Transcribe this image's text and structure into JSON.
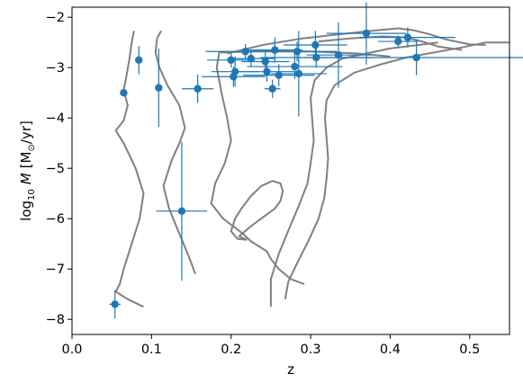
{
  "chart_data": {
    "type": "scatter",
    "xlabel": "z",
    "ylabel_parts": {
      "prefix": "log",
      "sub": "10",
      "mdot": "M",
      "units": "[M",
      "units_sub": "⊙",
      "units_tail": "/yr]"
    },
    "xlim": [
      0.0,
      0.55
    ],
    "ylim": [
      -8.3,
      -1.8
    ],
    "xticks": [
      0.0,
      0.1,
      0.2,
      0.3,
      0.4,
      0.5
    ],
    "xtick_labels": [
      "0.0",
      "0.1",
      "0.2",
      "0.3",
      "0.4",
      "0.5"
    ],
    "yticks": [
      -8,
      -7,
      -6,
      -5,
      -4,
      -3,
      -2
    ],
    "ytick_labels": [
      "−8",
      "−7",
      "−6",
      "−5",
      "−4",
      "−3",
      "−2"
    ],
    "grid": false,
    "colors": {
      "points": "#1f77b4",
      "contours": "#808080"
    },
    "points": [
      {
        "x": 0.054,
        "y": -7.7,
        "xerr": 0.007,
        "yerr": 0.28
      },
      {
        "x": 0.065,
        "y": -3.5,
        "xerr": 0.0,
        "yerr": 0.0
      },
      {
        "x": 0.084,
        "y": -2.85,
        "xerr": 0.0,
        "yerr": 0.28
      },
      {
        "x": 0.109,
        "y": -3.4,
        "xerr": 0.0,
        "yerr": 0.78
      },
      {
        "x": 0.138,
        "y": -5.85,
        "xerr": 0.032,
        "yerr": 1.38
      },
      {
        "x": 0.158,
        "y": -3.42,
        "xerr": 0.02,
        "yerr": 0.28
      },
      {
        "x": 0.2,
        "y": -2.85,
        "xerr": 0.03,
        "yerr": 0.15
      },
      {
        "x": 0.203,
        "y": -3.18,
        "xerr": 0.04,
        "yerr": 0.2
      },
      {
        "x": 0.205,
        "y": -3.08,
        "xerr": 0.03,
        "yerr": 0.3
      },
      {
        "x": 0.218,
        "y": -2.68,
        "xerr": 0.05,
        "yerr": 0.15
      },
      {
        "x": 0.225,
        "y": -2.82,
        "xerr": 0.03,
        "yerr": 0.16
      },
      {
        "x": 0.243,
        "y": -2.88,
        "xerr": 0.03,
        "yerr": 0.18
      },
      {
        "x": 0.245,
        "y": -3.08,
        "xerr": 0.04,
        "yerr": 0.2
      },
      {
        "x": 0.252,
        "y": -3.42,
        "xerr": 0.01,
        "yerr": 0.18
      },
      {
        "x": 0.255,
        "y": -2.65,
        "xerr": 0.035,
        "yerr": 0.25
      },
      {
        "x": 0.26,
        "y": -3.15,
        "xerr": 0.045,
        "yerr": 0.22
      },
      {
        "x": 0.28,
        "y": -2.98,
        "xerr": 0.06,
        "yerr": 0.25
      },
      {
        "x": 0.283,
        "y": -2.68,
        "xerr": 0.05,
        "yerr": 0.2
      },
      {
        "x": 0.285,
        "y": -3.12,
        "xerr": 0.035,
        "yerr": 0.85
      },
      {
        "x": 0.306,
        "y": -2.55,
        "xerr": 0.04,
        "yerr": 0.28
      },
      {
        "x": 0.307,
        "y": -2.8,
        "xerr": 0.07,
        "yerr": 0.2
      },
      {
        "x": 0.335,
        "y": -2.75,
        "xerr": 0.04,
        "yerr": 0.65
      },
      {
        "x": 0.37,
        "y": -2.32,
        "xerr": 0.05,
        "yerr": 0.62
      },
      {
        "x": 0.41,
        "y": -2.48,
        "xerr": 0.025,
        "yerr": 0.12
      },
      {
        "x": 0.422,
        "y": -2.4,
        "xerr": 0.06,
        "yerr": 0.2
      },
      {
        "x": 0.433,
        "y": -2.8,
        "xerr": 0.14,
        "yerr": 0.35
      }
    ],
    "contours": [
      [
        [
          0.09,
          -7.75
        ],
        [
          0.07,
          -7.6
        ],
        [
          0.055,
          -7.45
        ],
        [
          0.06,
          -7.3
        ],
        [
          0.065,
          -7.0
        ],
        [
          0.075,
          -6.5
        ],
        [
          0.085,
          -6.0
        ],
        [
          0.09,
          -5.5
        ],
        [
          0.08,
          -5.0
        ],
        [
          0.065,
          -4.5
        ],
        [
          0.055,
          -4.25
        ],
        [
          0.065,
          -4.05
        ],
        [
          0.07,
          -3.75
        ],
        [
          0.065,
          -3.45
        ],
        [
          0.068,
          -3.2
        ],
        [
          0.072,
          -2.85
        ],
        [
          0.075,
          -2.5
        ],
        [
          0.078,
          -2.27
        ]
      ],
      [
        [
          0.155,
          -7.1
        ],
        [
          0.148,
          -6.8
        ],
        [
          0.135,
          -6.3
        ],
        [
          0.122,
          -5.8
        ],
        [
          0.115,
          -5.35
        ],
        [
          0.125,
          -4.85
        ],
        [
          0.135,
          -4.5
        ],
        [
          0.142,
          -4.2
        ],
        [
          0.135,
          -3.75
        ],
        [
          0.12,
          -3.35
        ],
        [
          0.11,
          -3.0
        ],
        [
          0.105,
          -2.7
        ],
        [
          0.107,
          -2.42
        ],
        [
          0.112,
          -2.27
        ]
      ],
      [
        [
          0.22,
          -6.42
        ],
        [
          0.21,
          -6.35
        ],
        [
          0.225,
          -6.15
        ],
        [
          0.242,
          -5.95
        ],
        [
          0.255,
          -5.8
        ],
        [
          0.262,
          -5.65
        ],
        [
          0.265,
          -5.45
        ],
        [
          0.262,
          -5.3
        ],
        [
          0.252,
          -5.25
        ],
        [
          0.238,
          -5.35
        ],
        [
          0.225,
          -5.55
        ],
        [
          0.213,
          -5.8
        ],
        [
          0.205,
          -6.0
        ],
        [
          0.2,
          -6.25
        ],
        [
          0.208,
          -6.4
        ],
        [
          0.22,
          -6.42
        ]
      ],
      [
        [
          0.292,
          -7.3
        ],
        [
          0.275,
          -7.2
        ],
        [
          0.26,
          -7.0
        ],
        [
          0.25,
          -6.8
        ],
        [
          0.245,
          -6.65
        ],
        [
          0.235,
          -6.55
        ],
        [
          0.225,
          -6.45
        ],
        [
          0.215,
          -6.3
        ],
        [
          0.19,
          -6.0
        ],
        [
          0.175,
          -5.7
        ],
        [
          0.18,
          -5.3
        ],
        [
          0.192,
          -4.9
        ],
        [
          0.2,
          -4.45
        ],
        [
          0.195,
          -4.0
        ],
        [
          0.188,
          -3.5
        ],
        [
          0.182,
          -3.0
        ],
        [
          0.185,
          -2.7
        ],
        [
          0.23,
          -2.68
        ],
        [
          0.3,
          -2.68
        ],
        [
          0.36,
          -2.72
        ],
        [
          0.4,
          -2.78
        ]
      ],
      [
        [
          0.25,
          -7.75
        ],
        [
          0.25,
          -7.2
        ],
        [
          0.26,
          -6.7
        ],
        [
          0.273,
          -6.2
        ],
        [
          0.285,
          -5.75
        ],
        [
          0.296,
          -5.3
        ],
        [
          0.3,
          -4.9
        ],
        [
          0.304,
          -4.45
        ],
        [
          0.302,
          -4.05
        ],
        [
          0.3,
          -3.6
        ],
        [
          0.305,
          -3.25
        ],
        [
          0.32,
          -3.0
        ],
        [
          0.34,
          -2.82
        ],
        [
          0.37,
          -2.72
        ],
        [
          0.4,
          -2.62
        ],
        [
          0.43,
          -2.56
        ],
        [
          0.46,
          -2.5
        ]
      ],
      [
        [
          0.268,
          -7.6
        ],
        [
          0.272,
          -7.25
        ],
        [
          0.284,
          -6.85
        ],
        [
          0.297,
          -6.45
        ],
        [
          0.31,
          -6.0
        ],
        [
          0.317,
          -5.6
        ],
        [
          0.32,
          -5.2
        ],
        [
          0.322,
          -4.8
        ],
        [
          0.32,
          -4.4
        ],
        [
          0.318,
          -4.0
        ],
        [
          0.32,
          -3.65
        ],
        [
          0.33,
          -3.35
        ],
        [
          0.355,
          -3.1
        ],
        [
          0.385,
          -2.95
        ],
        [
          0.42,
          -2.8
        ],
        [
          0.455,
          -2.7
        ],
        [
          0.49,
          -2.6
        ],
        [
          0.52,
          -2.5
        ],
        [
          0.55,
          -2.5
        ]
      ],
      [
        [
          0.195,
          -2.72
        ],
        [
          0.24,
          -2.55
        ],
        [
          0.29,
          -2.42
        ],
        [
          0.33,
          -2.35
        ],
        [
          0.37,
          -2.28
        ],
        [
          0.41,
          -2.22
        ],
        [
          0.43,
          -2.26
        ],
        [
          0.45,
          -2.34
        ],
        [
          0.47,
          -2.44
        ],
        [
          0.5,
          -2.54
        ],
        [
          0.52,
          -2.55
        ]
      ],
      [
        [
          0.31,
          -2.48
        ],
        [
          0.35,
          -2.42
        ],
        [
          0.39,
          -2.38
        ],
        [
          0.42,
          -2.4
        ],
        [
          0.44,
          -2.48
        ],
        [
          0.46,
          -2.58
        ],
        [
          0.49,
          -2.65
        ]
      ]
    ]
  }
}
